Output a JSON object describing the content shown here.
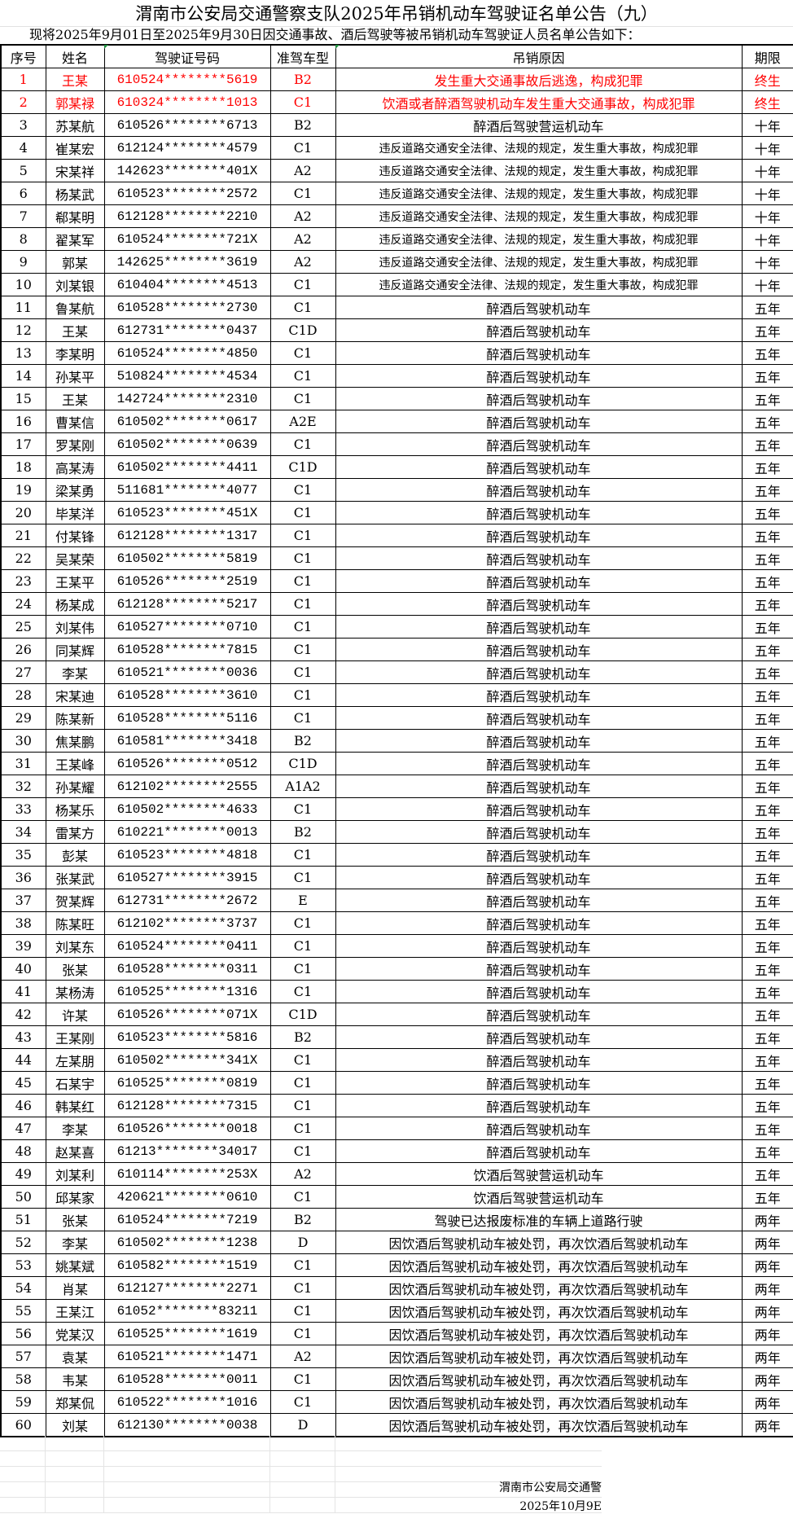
{
  "title": "渭南市公安局交通警察支队2025年吊销机动车驾驶证名单公告（九）",
  "subtitle": "现将2025年9月01日至2025年9月30日因交通事故、酒后驾驶等被吊销机动车驾驶证人员名单公告如下：",
  "columns": [
    "序号",
    "姓名",
    "驾驶证号码",
    "准驾车型",
    "吊销原因",
    "期限"
  ],
  "highlight_color": "#ff0000",
  "rows": [
    {
      "no": "1",
      "name": "王某",
      "id": "610524********5619",
      "cls": "B2",
      "reason": "发生重大交通事故后逃逸，构成犯罪",
      "term": "终生"
    },
    {
      "no": "2",
      "name": "郭某禄",
      "id": "610324********1013",
      "cls": "C1",
      "reason": "饮酒或者醉酒驾驶机动车发生重大交通事故，构成犯罪",
      "term": "终生"
    },
    {
      "no": "3",
      "name": "苏某航",
      "id": "610526********6713",
      "cls": "B2",
      "reason": "醉酒后驾驶营运机动车",
      "term": "十年"
    },
    {
      "no": "4",
      "name": "崔某宏",
      "id": "612124********4579",
      "cls": "C1",
      "reason": "违反道路交通安全法律、法规的规定，发生重大事故，构成犯罪",
      "term": "十年"
    },
    {
      "no": "5",
      "name": "宋某祥",
      "id": "142623********401X",
      "cls": "A2",
      "reason": "违反道路交通安全法律、法规的规定，发生重大事故，构成犯罪",
      "term": "十年"
    },
    {
      "no": "6",
      "name": "杨某武",
      "id": "610523********2572",
      "cls": "C1",
      "reason": "违反道路交通安全法律、法规的规定，发生重大事故，构成犯罪",
      "term": "十年"
    },
    {
      "no": "7",
      "name": "郗某明",
      "id": "612128********2210",
      "cls": "A2",
      "reason": "违反道路交通安全法律、法规的规定，发生重大事故，构成犯罪",
      "term": "十年"
    },
    {
      "no": "8",
      "name": "翟某军",
      "id": "610524********721X",
      "cls": "A2",
      "reason": "违反道路交通安全法律、法规的规定，发生重大事故，构成犯罪",
      "term": "十年"
    },
    {
      "no": "9",
      "name": "郭某",
      "id": "142625********3619",
      "cls": "A2",
      "reason": "违反道路交通安全法律、法规的规定，发生重大事故，构成犯罪",
      "term": "十年"
    },
    {
      "no": "10",
      "name": "刘某银",
      "id": "610404********4513",
      "cls": "C1",
      "reason": "违反道路交通安全法律、法规的规定，发生重大事故，构成犯罪",
      "term": "十年"
    },
    {
      "no": "11",
      "name": "鲁某航",
      "id": "610528********2730",
      "cls": "C1",
      "reason": "醉酒后驾驶机动车",
      "term": "五年"
    },
    {
      "no": "12",
      "name": "王某",
      "id": "612731********0437",
      "cls": "C1D",
      "reason": "醉酒后驾驶机动车",
      "term": "五年"
    },
    {
      "no": "13",
      "name": "李某明",
      "id": "610524********4850",
      "cls": "C1",
      "reason": "醉酒后驾驶机动车",
      "term": "五年"
    },
    {
      "no": "14",
      "name": "孙某平",
      "id": "510824********4534",
      "cls": "C1",
      "reason": "醉酒后驾驶机动车",
      "term": "五年"
    },
    {
      "no": "15",
      "name": "王某",
      "id": "142724********2310",
      "cls": "C1",
      "reason": "醉酒后驾驶机动车",
      "term": "五年"
    },
    {
      "no": "16",
      "name": "曹某信",
      "id": "610502********0617",
      "cls": "A2E",
      "reason": "醉酒后驾驶机动车",
      "term": "五年"
    },
    {
      "no": "17",
      "name": "罗某刚",
      "id": "610502********0639",
      "cls": "C1",
      "reason": "醉酒后驾驶机动车",
      "term": "五年"
    },
    {
      "no": "18",
      "name": "高某涛",
      "id": "610502********4411",
      "cls": "C1D",
      "reason": "醉酒后驾驶机动车",
      "term": "五年"
    },
    {
      "no": "19",
      "name": "梁某勇",
      "id": "511681********4077",
      "cls": "C1",
      "reason": "醉酒后驾驶机动车",
      "term": "五年"
    },
    {
      "no": "20",
      "name": "毕某洋",
      "id": "610523********451X",
      "cls": "C1",
      "reason": "醉酒后驾驶机动车",
      "term": "五年"
    },
    {
      "no": "21",
      "name": "付某锋",
      "id": "612128********1317",
      "cls": "C1",
      "reason": "醉酒后驾驶机动车",
      "term": "五年"
    },
    {
      "no": "22",
      "name": "吴某荣",
      "id": "610502********5819",
      "cls": "C1",
      "reason": "醉酒后驾驶机动车",
      "term": "五年"
    },
    {
      "no": "23",
      "name": "王某平",
      "id": "610526********2519",
      "cls": "C1",
      "reason": "醉酒后驾驶机动车",
      "term": "五年"
    },
    {
      "no": "24",
      "name": "杨某成",
      "id": "612128********5217",
      "cls": "C1",
      "reason": "醉酒后驾驶机动车",
      "term": "五年"
    },
    {
      "no": "25",
      "name": "刘某伟",
      "id": "610527********0710",
      "cls": "C1",
      "reason": "醉酒后驾驶机动车",
      "term": "五年"
    },
    {
      "no": "26",
      "name": "同某辉",
      "id": "610528********7815",
      "cls": "C1",
      "reason": "醉酒后驾驶机动车",
      "term": "五年"
    },
    {
      "no": "27",
      "name": "李某",
      "id": "610521********0036",
      "cls": "C1",
      "reason": "醉酒后驾驶机动车",
      "term": "五年"
    },
    {
      "no": "28",
      "name": "宋某迪",
      "id": "610528********3610",
      "cls": "C1",
      "reason": "醉酒后驾驶机动车",
      "term": "五年"
    },
    {
      "no": "29",
      "name": "陈某新",
      "id": "610528********5116",
      "cls": "C1",
      "reason": "醉酒后驾驶机动车",
      "term": "五年"
    },
    {
      "no": "30",
      "name": "焦某鹏",
      "id": "610581********3418",
      "cls": "B2",
      "reason": "醉酒后驾驶机动车",
      "term": "五年"
    },
    {
      "no": "31",
      "name": "王某峰",
      "id": "610526********0512",
      "cls": "C1D",
      "reason": "醉酒后驾驶机动车",
      "term": "五年"
    },
    {
      "no": "32",
      "name": "孙某耀",
      "id": "612102********2555",
      "cls": "A1A2",
      "reason": "醉酒后驾驶机动车",
      "term": "五年"
    },
    {
      "no": "33",
      "name": "杨某乐",
      "id": "610502********4633",
      "cls": "C1",
      "reason": "醉酒后驾驶机动车",
      "term": "五年"
    },
    {
      "no": "34",
      "name": "雷某方",
      "id": "610221********0013",
      "cls": "B2",
      "reason": "醉酒后驾驶机动车",
      "term": "五年"
    },
    {
      "no": "35",
      "name": "彭某",
      "id": "610523********4818",
      "cls": "C1",
      "reason": "醉酒后驾驶机动车",
      "term": "五年"
    },
    {
      "no": "36",
      "name": "张某武",
      "id": "610527********3915",
      "cls": "C1",
      "reason": "醉酒后驾驶机动车",
      "term": "五年"
    },
    {
      "no": "37",
      "name": "贺某辉",
      "id": "612731********2672",
      "cls": "E",
      "reason": "醉酒后驾驶机动车",
      "term": "五年"
    },
    {
      "no": "38",
      "name": "陈某旺",
      "id": "612102********3737",
      "cls": "C1",
      "reason": "醉酒后驾驶机动车",
      "term": "五年"
    },
    {
      "no": "39",
      "name": "刘某东",
      "id": "610524********0411",
      "cls": "C1",
      "reason": "醉酒后驾驶机动车",
      "term": "五年"
    },
    {
      "no": "40",
      "name": "张某",
      "id": "610528********0311",
      "cls": "C1",
      "reason": "醉酒后驾驶机动车",
      "term": "五年"
    },
    {
      "no": "41",
      "name": "某杨涛",
      "id": "610525********1316",
      "cls": "C1",
      "reason": "醉酒后驾驶机动车",
      "term": "五年"
    },
    {
      "no": "42",
      "name": "许某",
      "id": "610526********071X",
      "cls": "C1D",
      "reason": "醉酒后驾驶机动车",
      "term": "五年"
    },
    {
      "no": "43",
      "name": "王某刚",
      "id": "610523********5816",
      "cls": "B2",
      "reason": "醉酒后驾驶机动车",
      "term": "五年"
    },
    {
      "no": "44",
      "name": "左某朋",
      "id": "610502********341X",
      "cls": "C1",
      "reason": "醉酒后驾驶机动车",
      "term": "五年"
    },
    {
      "no": "45",
      "name": "石某宇",
      "id": "610525********0819",
      "cls": "C1",
      "reason": "醉酒后驾驶机动车",
      "term": "五年"
    },
    {
      "no": "46",
      "name": "韩某红",
      "id": "612128********7315",
      "cls": "C1",
      "reason": "醉酒后驾驶机动车",
      "term": "五年"
    },
    {
      "no": "47",
      "name": "李某",
      "id": "610526********0018",
      "cls": "C1",
      "reason": "醉酒后驾驶机动车",
      "term": "五年"
    },
    {
      "no": "48",
      "name": "赵某喜",
      "id": "61213********34017",
      "cls": "C1",
      "reason": "醉酒后驾驶机动车",
      "term": "五年"
    },
    {
      "no": "49",
      "name": "刘某利",
      "id": "610114********253X",
      "cls": "A2",
      "reason": "饮酒后驾驶营运机动车",
      "term": "五年"
    },
    {
      "no": "50",
      "name": "邱某家",
      "id": "420621********0610",
      "cls": "C1",
      "reason": "饮酒后驾驶营运机动车",
      "term": "五年"
    },
    {
      "no": "51",
      "name": "张某",
      "id": "610524********7219",
      "cls": "B2",
      "reason": "驾驶已达报废标准的车辆上道路行驶",
      "term": "两年"
    },
    {
      "no": "52",
      "name": "李某",
      "id": "610502********1238",
      "cls": "D",
      "reason": "因饮酒后驾驶机动车被处罚，再次饮酒后驾驶机动车",
      "term": "两年"
    },
    {
      "no": "53",
      "name": "姚某斌",
      "id": "610582********1519",
      "cls": "C1",
      "reason": "因饮酒后驾驶机动车被处罚，再次饮酒后驾驶机动车",
      "term": "两年"
    },
    {
      "no": "54",
      "name": "肖某",
      "id": "612127********2271",
      "cls": "C1",
      "reason": "因饮酒后驾驶机动车被处罚，再次饮酒后驾驶机动车",
      "term": "两年"
    },
    {
      "no": "55",
      "name": "王某江",
      "id": "61052********83211",
      "cls": "C1",
      "reason": "因饮酒后驾驶机动车被处罚，再次饮酒后驾驶机动车",
      "term": "两年"
    },
    {
      "no": "56",
      "name": "党某汉",
      "id": "610525********1619",
      "cls": "C1",
      "reason": "因饮酒后驾驶机动车被处罚，再次饮酒后驾驶机动车",
      "term": "两年"
    },
    {
      "no": "57",
      "name": "袁某",
      "id": "610521********1471",
      "cls": "A2",
      "reason": "因饮酒后驾驶机动车被处罚，再次饮酒后驾驶机动车",
      "term": "两年"
    },
    {
      "no": "58",
      "name": "韦某",
      "id": "610528********0011",
      "cls": "C1",
      "reason": "因饮酒后驾驶机动车被处罚，再次饮酒后驾驶机动车",
      "term": "两年"
    },
    {
      "no": "59",
      "name": "郑某侃",
      "id": "610522********1016",
      "cls": "C1",
      "reason": "因饮酒后驾驶机动车被处罚，再次饮酒后驾驶机动车",
      "term": "两年"
    },
    {
      "no": "60",
      "name": "刘某",
      "id": "612130********0038",
      "cls": "D",
      "reason": "因饮酒后驾驶机动车被处罚，再次饮酒后驾驶机动车",
      "term": "两年"
    }
  ],
  "footer": {
    "issuer": "渭南市公安局交通警",
    "date": "2025年10月9E"
  }
}
